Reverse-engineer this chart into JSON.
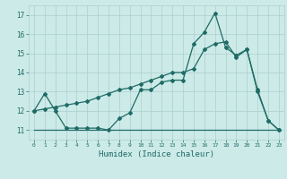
{
  "xlabel": "Humidex (Indice chaleur)",
  "bg_color": "#cceae8",
  "grid_color": "#aacfcd",
  "line_color": "#1f6b65",
  "xlim": [
    -0.5,
    23.5
  ],
  "ylim": [
    10.5,
    17.5
  ],
  "yticks": [
    11,
    12,
    13,
    14,
    15,
    16,
    17
  ],
  "xticks": [
    0,
    1,
    2,
    3,
    4,
    5,
    6,
    7,
    8,
    9,
    10,
    11,
    12,
    13,
    14,
    15,
    16,
    17,
    18,
    19,
    20,
    21,
    22,
    23
  ],
  "series1_x": [
    0,
    1,
    2,
    3,
    4,
    5,
    6,
    7,
    8,
    9,
    10,
    11,
    12,
    13,
    14,
    15,
    16,
    17,
    18,
    19,
    20,
    21,
    22,
    23
  ],
  "series1_y": [
    12.0,
    12.9,
    12.0,
    11.1,
    11.1,
    11.1,
    11.1,
    11.0,
    11.6,
    11.9,
    13.1,
    13.1,
    13.5,
    13.6,
    13.6,
    15.5,
    16.1,
    17.1,
    15.3,
    14.9,
    15.2,
    13.1,
    11.5,
    11.0
  ],
  "series2_x": [
    0,
    1,
    2,
    3,
    4,
    5,
    6,
    7,
    8,
    9,
    10,
    11,
    12,
    13,
    14,
    15,
    16,
    17,
    18,
    19,
    20,
    21,
    22,
    23
  ],
  "series2_y": [
    11.0,
    11.0,
    11.0,
    11.0,
    11.0,
    11.0,
    11.0,
    11.0,
    11.0,
    11.0,
    11.0,
    11.0,
    11.0,
    11.0,
    11.0,
    11.0,
    11.0,
    11.0,
    11.0,
    11.0,
    11.0,
    11.0,
    11.0,
    11.0
  ],
  "series3_x": [
    0,
    1,
    2,
    3,
    4,
    5,
    6,
    7,
    8,
    9,
    10,
    11,
    12,
    13,
    14,
    15,
    16,
    17,
    18,
    19,
    20,
    21,
    22,
    23
  ],
  "series3_y": [
    12.0,
    12.1,
    12.2,
    12.3,
    12.4,
    12.5,
    12.7,
    12.9,
    13.1,
    13.2,
    13.4,
    13.6,
    13.8,
    14.0,
    14.0,
    14.2,
    15.2,
    15.5,
    15.6,
    14.8,
    15.2,
    13.0,
    11.5,
    11.0
  ]
}
